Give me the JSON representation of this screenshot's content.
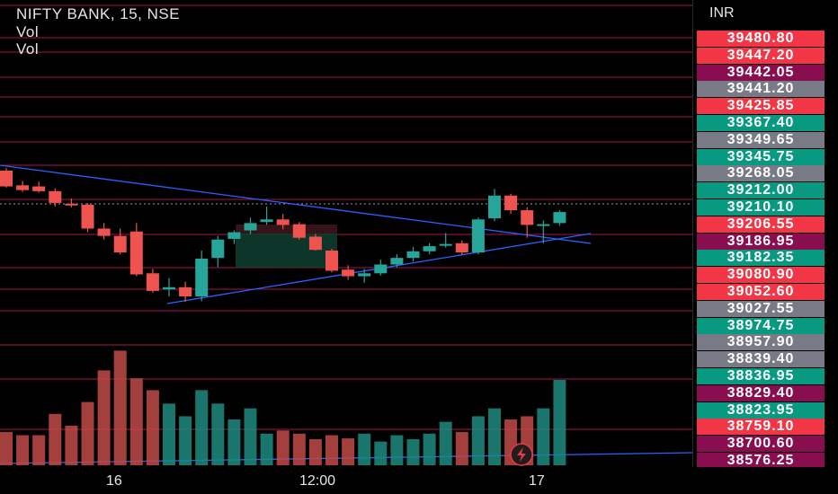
{
  "header": {
    "title": "NIFTY BANK, 15, NSE",
    "indicator_1": "Vol",
    "indicator_2": "Vol"
  },
  "currency": "INR",
  "price_labels": [
    {
      "value": "39480.80",
      "color": "#f23645"
    },
    {
      "value": "39447.20",
      "color": "#f23645"
    },
    {
      "value": "39442.05",
      "color": "#880e4f"
    },
    {
      "value": "39441.20",
      "color": "#787b86"
    },
    {
      "value": "39425.85",
      "color": "#f23645"
    },
    {
      "value": "39367.40",
      "color": "#089981"
    },
    {
      "value": "39349.65",
      "color": "#787b86"
    },
    {
      "value": "39345.75",
      "color": "#089981"
    },
    {
      "value": "39268.05",
      "color": "#787b86"
    },
    {
      "value": "39212.00",
      "color": "#089981"
    },
    {
      "value": "39210.10",
      "color": "#089981"
    },
    {
      "value": "39206.55",
      "color": "#f23645"
    },
    {
      "value": "39186.95",
      "color": "#880e4f"
    },
    {
      "value": "39182.35",
      "color": "#089981"
    },
    {
      "value": "39080.90",
      "color": "#f23645"
    },
    {
      "value": "39052.60",
      "color": "#f23645"
    },
    {
      "value": "39027.55",
      "color": "#787b86"
    },
    {
      "value": "38974.75",
      "color": "#089981"
    },
    {
      "value": "38957.90",
      "color": "#787b86"
    },
    {
      "value": "38839.40",
      "color": "#787b86"
    },
    {
      "value": "38836.95",
      "color": "#089981"
    },
    {
      "value": "38829.40",
      "color": "#880e4f"
    },
    {
      "value": "38823.95",
      "color": "#089981"
    },
    {
      "value": "38759.10",
      "color": "#f23645"
    },
    {
      "value": "38700.60",
      "color": "#880e4f"
    },
    {
      "value": "38576.25",
      "color": "#880e4f"
    }
  ],
  "time_labels": [
    "16",
    "12:00",
    "17"
  ],
  "colors": {
    "up": "#26a69a",
    "down": "#ef5350",
    "hline": "#c2185b",
    "trend": "#2962ff"
  },
  "candles": [
    {
      "o": 39268,
      "h": 39275,
      "l": 39222,
      "c": 39225
    },
    {
      "o": 39228,
      "h": 39240,
      "l": 39210,
      "c": 39215
    },
    {
      "o": 39225,
      "h": 39238,
      "l": 39208,
      "c": 39212
    },
    {
      "o": 39212,
      "h": 39220,
      "l": 39170,
      "c": 39180
    },
    {
      "o": 39178,
      "h": 39192,
      "l": 39168,
      "c": 39175
    },
    {
      "o": 39175,
      "h": 39180,
      "l": 39100,
      "c": 39110
    },
    {
      "o": 39110,
      "h": 39125,
      "l": 39080,
      "c": 39090
    },
    {
      "o": 39090,
      "h": 39110,
      "l": 39040,
      "c": 39045
    },
    {
      "o": 39102,
      "h": 39125,
      "l": 38980,
      "c": 38985
    },
    {
      "o": 38988,
      "h": 39000,
      "l": 38935,
      "c": 38940
    },
    {
      "o": 38944,
      "h": 38975,
      "l": 38925,
      "c": 38950
    },
    {
      "o": 38950,
      "h": 38965,
      "l": 38910,
      "c": 38925
    },
    {
      "o": 38925,
      "h": 39050,
      "l": 38912,
      "c": 39028
    },
    {
      "o": 39030,
      "h": 39090,
      "l": 39005,
      "c": 39080
    },
    {
      "o": 39082,
      "h": 39105,
      "l": 39068,
      "c": 39100
    },
    {
      "o": 39105,
      "h": 39140,
      "l": 39095,
      "c": 39125
    },
    {
      "o": 39128,
      "h": 39170,
      "l": 39120,
      "c": 39135
    },
    {
      "o": 39135,
      "h": 39150,
      "l": 39108,
      "c": 39120
    },
    {
      "o": 39122,
      "h": 39128,
      "l": 39080,
      "c": 39085
    },
    {
      "o": 39088,
      "h": 39095,
      "l": 39050,
      "c": 39052
    },
    {
      "o": 39050,
      "h": 39055,
      "l": 38990,
      "c": 38995
    },
    {
      "o": 38998,
      "h": 39010,
      "l": 38970,
      "c": 38980
    },
    {
      "o": 38980,
      "h": 39000,
      "l": 38962,
      "c": 38988
    },
    {
      "o": 38988,
      "h": 39025,
      "l": 38982,
      "c": 39012
    },
    {
      "o": 39012,
      "h": 39040,
      "l": 39005,
      "c": 39030
    },
    {
      "o": 39030,
      "h": 39060,
      "l": 39020,
      "c": 39048
    },
    {
      "o": 39048,
      "h": 39070,
      "l": 39040,
      "c": 39062
    },
    {
      "o": 39065,
      "h": 39098,
      "l": 39058,
      "c": 39068
    },
    {
      "o": 39070,
      "h": 39078,
      "l": 39038,
      "c": 39045
    },
    {
      "o": 39045,
      "h": 39140,
      "l": 39040,
      "c": 39135
    },
    {
      "o": 39138,
      "h": 39218,
      "l": 39130,
      "c": 39200
    },
    {
      "o": 39200,
      "h": 39205,
      "l": 39150,
      "c": 39160
    },
    {
      "o": 39160,
      "h": 39168,
      "l": 39085,
      "c": 39120
    },
    {
      "o": 39118,
      "h": 39132,
      "l": 39070,
      "c": 39122
    },
    {
      "o": 39125,
      "h": 39160,
      "l": 39118,
      "c": 39155
    }
  ],
  "volume": [
    {
      "v": 42,
      "up": false
    },
    {
      "v": 38,
      "up": false
    },
    {
      "v": 38,
      "up": false
    },
    {
      "v": 65,
      "up": false
    },
    {
      "v": 50,
      "up": false
    },
    {
      "v": 80,
      "up": false
    },
    {
      "v": 120,
      "up": false
    },
    {
      "v": 145,
      "up": false
    },
    {
      "v": 110,
      "up": false
    },
    {
      "v": 95,
      "up": false
    },
    {
      "v": 78,
      "up": true
    },
    {
      "v": 62,
      "up": true
    },
    {
      "v": 95,
      "up": true
    },
    {
      "v": 78,
      "up": true
    },
    {
      "v": 58,
      "up": true
    },
    {
      "v": 72,
      "up": true
    },
    {
      "v": 40,
      "up": true
    },
    {
      "v": 44,
      "up": false
    },
    {
      "v": 40,
      "up": false
    },
    {
      "v": 33,
      "up": false
    },
    {
      "v": 38,
      "up": false
    },
    {
      "v": 34,
      "up": false
    },
    {
      "v": 40,
      "up": true
    },
    {
      "v": 30,
      "up": true
    },
    {
      "v": 38,
      "up": true
    },
    {
      "v": 33,
      "up": true
    },
    {
      "v": 40,
      "up": true
    },
    {
      "v": 55,
      "up": true
    },
    {
      "v": 42,
      "up": false
    },
    {
      "v": 62,
      "up": true
    },
    {
      "v": 72,
      "up": true
    },
    {
      "v": 58,
      "up": false
    },
    {
      "v": 62,
      "up": false
    },
    {
      "v": 72,
      "up": true
    },
    {
      "v": 108,
      "up": true
    }
  ]
}
